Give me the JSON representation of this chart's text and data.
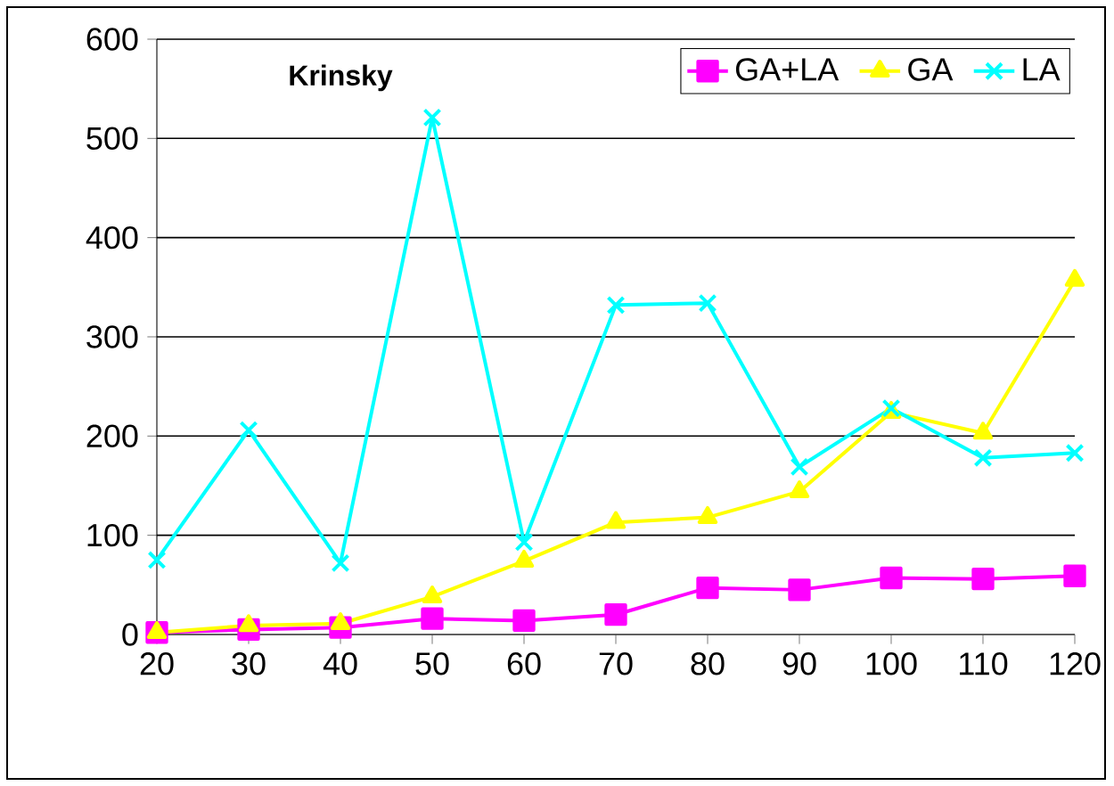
{
  "chart_data": {
    "type": "line",
    "title": "Krinsky",
    "x": [
      20,
      30,
      40,
      50,
      60,
      70,
      80,
      90,
      100,
      110,
      120
    ],
    "series": [
      {
        "name": "GA+LA",
        "color": "#ff00ff",
        "marker": "square",
        "values": [
          2,
          5,
          7,
          16,
          14,
          20,
          47,
          45,
          57,
          56,
          59
        ]
      },
      {
        "name": "GA",
        "color": "#ffff00",
        "marker": "triangle",
        "values": [
          2,
          9,
          11,
          38,
          74,
          113,
          118,
          144,
          224,
          203,
          357
        ]
      },
      {
        "name": "LA",
        "color": "#00ffff",
        "marker": "cross",
        "values": [
          75,
          206,
          72,
          521,
          93,
          332,
          334,
          169,
          228,
          178,
          183
        ]
      }
    ],
    "xlim": [
      20,
      120
    ],
    "xticks": [
      20,
      30,
      40,
      50,
      60,
      70,
      80,
      90,
      100,
      110,
      120
    ],
    "ylim": [
      0,
      600
    ],
    "yticks": [
      0,
      100,
      200,
      300,
      400,
      500,
      600
    ],
    "grid": "y",
    "legend": "top right",
    "line_style": "solid"
  }
}
